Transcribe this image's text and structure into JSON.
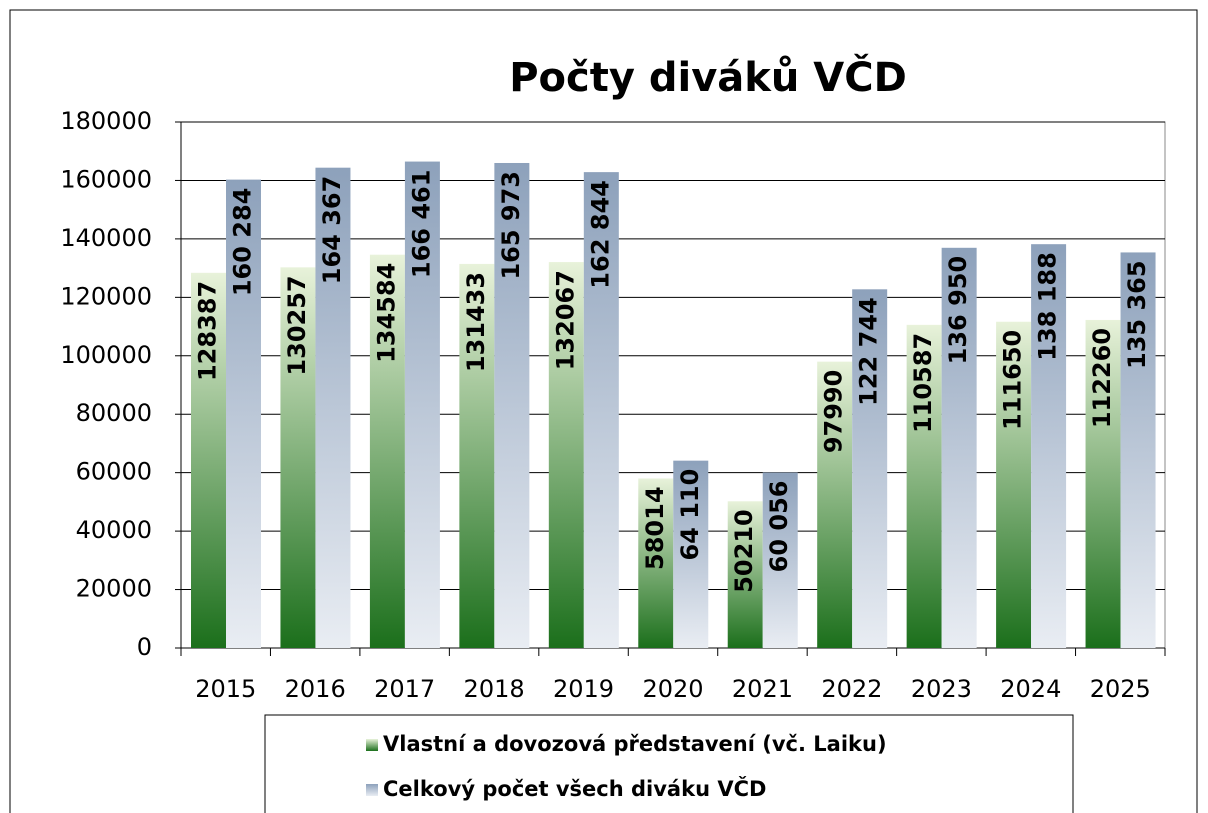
{
  "chart_data": {
    "type": "bar",
    "title": "Počty diváků VČD",
    "categories": [
      "2015",
      "2016",
      "2017",
      "2018",
      "2019",
      "2020",
      "2021",
      "2022",
      "2023",
      "2024",
      "2025"
    ],
    "series": [
      {
        "name": "Vlastní a dovozová představení (vč. Laiku)",
        "color": "#1b6f1b",
        "values": [
          128387,
          130257,
          134584,
          131433,
          132067,
          58014,
          50210,
          97990,
          110587,
          111650,
          112260
        ]
      },
      {
        "name": "Celkový počet všech diváku VČD",
        "color": "#8da1bb",
        "values": [
          160284,
          164367,
          166461,
          165973,
          162844,
          64110,
          60056,
          122744,
          136950,
          138188,
          135365
        ],
        "value_labels": [
          "160 284",
          "164 367",
          "166 461",
          "165 973",
          "162 844",
          "64 110",
          "60 056",
          "122 744",
          "136 950",
          "138 188",
          "135 365"
        ]
      }
    ],
    "ylim": [
      0,
      180000
    ],
    "yticks": [
      0,
      20000,
      40000,
      60000,
      80000,
      100000,
      120000,
      140000,
      160000,
      180000
    ],
    "grid": true,
    "legend": "bottom"
  }
}
